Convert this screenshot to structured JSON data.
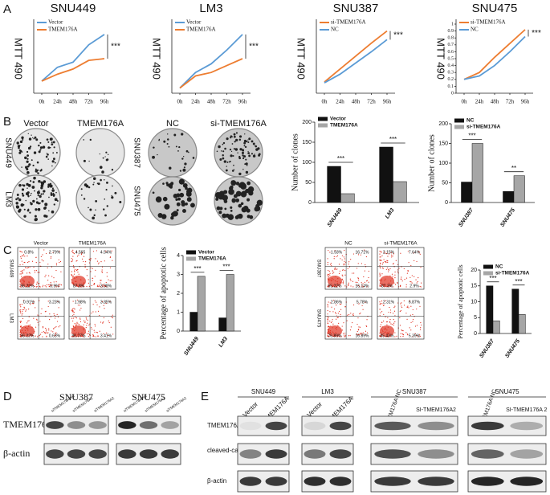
{
  "panel_labels": [
    "A",
    "B",
    "C",
    "D",
    "E"
  ],
  "chart_data": [
    {
      "type": "line",
      "title": "SNU449",
      "ylabel": "MTT 490",
      "categories": [
        "0h",
        "24h",
        "48h",
        "72h",
        "96h"
      ],
      "series": [
        {
          "name": "Vector",
          "color": "#5b9bd5",
          "values": [
            0.17,
            0.25,
            0.28,
            0.38,
            0.44
          ]
        },
        {
          "name": "TMEM176A",
          "color": "#ed7d31",
          "values": [
            0.17,
            0.21,
            0.24,
            0.29,
            0.3
          ]
        }
      ],
      "ylim": [
        0.1,
        0.5
      ],
      "annotation": "***"
    },
    {
      "type": "line",
      "title": "LM3",
      "ylabel": "MTT 490",
      "categories": [
        "0h",
        "24h",
        "48h",
        "72h",
        "96h"
      ],
      "series": [
        {
          "name": "Vector",
          "color": "#5b9bd5",
          "values": [
            0.13,
            0.22,
            0.27,
            0.35,
            0.44
          ]
        },
        {
          "name": "TMEM176A",
          "color": "#ed7d31",
          "values": [
            0.13,
            0.2,
            0.22,
            0.26,
            0.3
          ]
        }
      ],
      "ylim": [
        0.1,
        0.5
      ],
      "annotation": "***"
    },
    {
      "type": "line",
      "title": "SNU387",
      "ylabel": "MTT 490",
      "categories": [
        "0h",
        "24h",
        "48h",
        "72h",
        "96h"
      ],
      "series": [
        {
          "name": "si-TMEM176A",
          "color": "#ed7d31",
          "values": [
            0.23,
            0.38,
            0.53,
            0.68,
            0.82
          ]
        },
        {
          "name": "NC",
          "color": "#5b9bd5",
          "values": [
            0.22,
            0.32,
            0.45,
            0.58,
            0.72
          ]
        }
      ],
      "ylim": [
        0.1,
        0.9
      ],
      "annotation": "***"
    },
    {
      "type": "line",
      "title": "SNU475",
      "ylabel": "MTT 490",
      "categories": [
        "0h",
        "24h",
        "48h",
        "72h",
        "96h"
      ],
      "series": [
        {
          "name": "si-TMEM176A",
          "color": "#ed7d31",
          "values": [
            0.2,
            0.3,
            0.52,
            0.72,
            0.92
          ]
        },
        {
          "name": "NC",
          "color": "#5b9bd5",
          "values": [
            0.2,
            0.25,
            0.4,
            0.6,
            0.82
          ]
        }
      ],
      "ylim": [
        0,
        1
      ],
      "yticks": [
        0,
        0.1,
        0.2,
        0.3,
        0.4,
        0.5,
        0.6,
        0.7,
        0.8,
        0.9,
        1
      ],
      "annotation": "***"
    },
    {
      "type": "bar",
      "ylabel": "Number of clones",
      "categories": [
        "SNU449",
        "LM3"
      ],
      "series": [
        {
          "name": "Vector",
          "color": "#111111",
          "values": [
            90,
            138
          ]
        },
        {
          "name": "TMEM176A",
          "color": "#a6a6a6",
          "values": [
            22,
            52
          ]
        }
      ],
      "ylim": [
        0,
        200
      ],
      "yticks": [
        0,
        50,
        100,
        150,
        200
      ],
      "annotations": [
        "***",
        "***"
      ]
    },
    {
      "type": "bar",
      "ylabel": "Number of clones",
      "categories": [
        "SNU387",
        "SNU475"
      ],
      "series": [
        {
          "name": "NC",
          "color": "#111111",
          "values": [
            52,
            28
          ]
        },
        {
          "name": "si-TMEM176A",
          "color": "#a6a6a6",
          "values": [
            150,
            68
          ]
        }
      ],
      "ylim": [
        0,
        200
      ],
      "yticks": [
        0,
        50,
        100,
        150,
        200
      ],
      "annotations": [
        "***",
        "**"
      ]
    },
    {
      "type": "bar",
      "ylabel": "Percentage of apoptotic cells",
      "categories": [
        "SNU449",
        "LM3"
      ],
      "series": [
        {
          "name": "Vector",
          "color": "#111111",
          "values": [
            1.0,
            0.7
          ]
        },
        {
          "name": "TMEM176A",
          "color": "#a6a6a6",
          "values": [
            2.9,
            3.0
          ]
        }
      ],
      "ylim": [
        0,
        4
      ],
      "yticks": [
        0,
        1,
        2,
        3,
        4
      ],
      "annotations": [
        "***",
        "***"
      ]
    },
    {
      "type": "bar",
      "ylabel": "Percentage of apoptotic cells",
      "categories": [
        "SNU387",
        "SNU475"
      ],
      "series": [
        {
          "name": "NC",
          "color": "#111111",
          "values": [
            15,
            14
          ]
        },
        {
          "name": "si-TMEM176A",
          "color": "#a6a6a6",
          "values": [
            4,
            6
          ]
        }
      ],
      "ylim": [
        0,
        20
      ],
      "yticks": [
        0,
        5,
        10,
        15,
        20
      ],
      "annotations": [
        "***",
        "***"
      ]
    }
  ],
  "colony": {
    "left": {
      "columns": [
        "Vector",
        "TMEM176A"
      ],
      "rows": [
        "SNU449",
        "LM3"
      ]
    },
    "right": {
      "columns": [
        "NC",
        "si-TMEM176A"
      ],
      "rows": [
        "SNU387",
        "SNU475"
      ]
    }
  },
  "flow": {
    "left": {
      "columns": [
        "Vector",
        "TMEM176A"
      ],
      "rows": [
        "SNU449",
        "LM3"
      ],
      "quadrants": [
        [
          [
            "0.8%",
            "2.79%",
            "96.22%",
            "0.9%"
          ],
          [
            "4.565",
            "4.54%",
            "87.8%",
            "3.08%"
          ]
        ],
        [
          [
            "0.91%",
            "3.23%",
            "96.22%",
            "0.63%"
          ],
          [
            "1.98%",
            "3.85%",
            "90.77%",
            "3.41%"
          ]
        ]
      ]
    },
    "right": {
      "columns": [
        "NC",
        "si-TMEM176A"
      ],
      "rows": [
        "SNU387",
        "SNU475"
      ],
      "quadrants": [
        [
          [
            "1.93%",
            "16.71%",
            "65.22%",
            "16.14%"
          ],
          [
            "2.15%",
            "7.64%",
            "87.3%",
            "2.9%"
          ]
        ],
        [
          [
            "2.86%",
            "5.78%",
            "76.89%",
            "16.89%"
          ],
          [
            "2.31%",
            "6.87%",
            "85.43%",
            "5.39%"
          ]
        ]
      ]
    }
  },
  "blot_d": {
    "rows": [
      "TMEM176A",
      "β-actin"
    ],
    "groups": [
      {
        "name": "SNU387",
        "lanes": [
          "siTMEM176A NC",
          "siTMEM176A1",
          "siTMEM176A2"
        ]
      },
      {
        "name": "SNU475",
        "lanes": [
          "siTMEM176A NC",
          "siTMEM176A1",
          "siTMEM176A2"
        ]
      }
    ]
  },
  "blot_e": {
    "rows": [
      "TMEM176A",
      "cleaved-caspase3",
      "β-actin"
    ],
    "groups": [
      {
        "name": "SNU449",
        "lanes": [
          "Vector",
          "TMEM176A"
        ]
      },
      {
        "name": "LM3",
        "lanes": [
          "Vector",
          "TMEM176A"
        ]
      },
      {
        "name": "SNU387",
        "lanes": [
          "siTMEM176A NC",
          "SI-TMEM176A2"
        ]
      },
      {
        "name": "SNU475",
        "lanes": [
          "siTMEM176A NC",
          "SI-TMEM176A 2"
        ]
      }
    ]
  }
}
